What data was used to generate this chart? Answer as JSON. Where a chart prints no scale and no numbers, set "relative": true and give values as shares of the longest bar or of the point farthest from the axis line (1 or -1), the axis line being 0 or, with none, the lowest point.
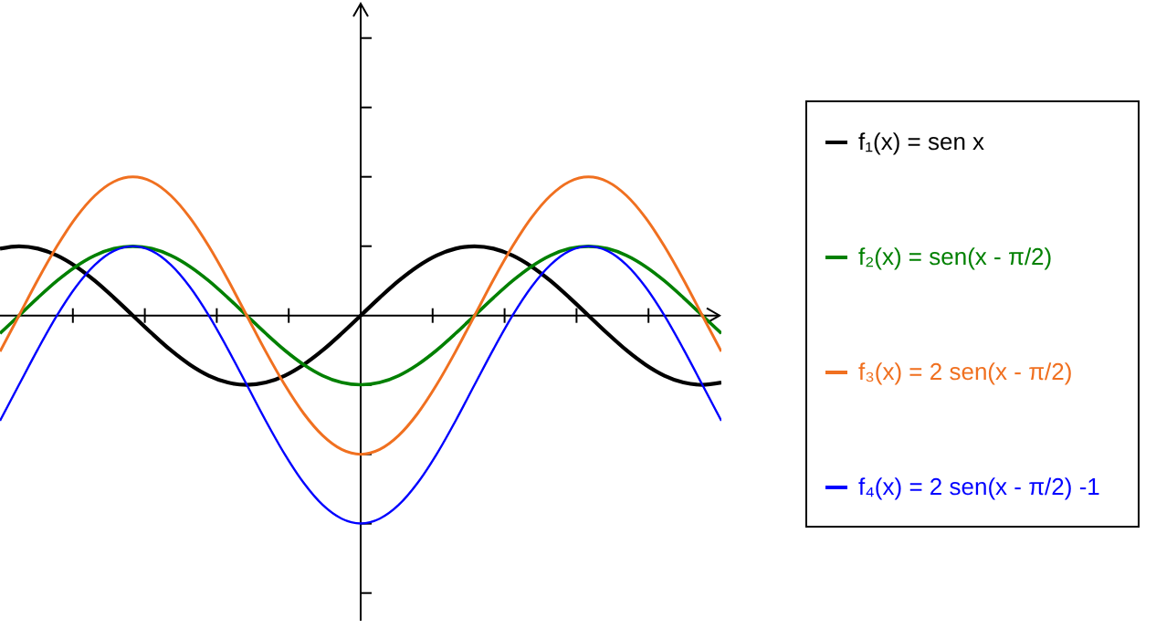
{
  "chart_data": {
    "type": "line",
    "relative": true,
    "legend": "right",
    "marker": "none",
    "line_style": "solid",
    "categories": [
      null,
      null,
      null,
      null,
      null,
      null,
      null,
      null,
      null,
      null,
      null,
      null,
      null,
      null,
      null,
      null,
      null,
      null,
      null,
      null,
      null,
      null,
      null,
      null,
      null,
      null,
      null,
      null,
      null,
      null,
      null,
      null,
      null,
      null,
      null,
      null,
      null,
      null,
      null
    ],
    "series": [
      {
        "name": "f₁(x) = sen x",
        "color": "#000000",
        "values": [
          0.322,
          0.333,
          0.322,
          0.289,
          0.236,
          0.167,
          0.086,
          0,
          -0.086,
          -0.167,
          -0.236,
          -0.289,
          -0.322,
          -0.333,
          -0.322,
          -0.289,
          -0.236,
          -0.167,
          -0.086,
          0,
          0.086,
          0.167,
          0.236,
          0.289,
          0.322,
          0.333,
          0.322,
          0.289,
          0.236,
          0.167,
          0.086,
          0,
          -0.086,
          -0.167,
          -0.236,
          -0.289,
          -0.322,
          -0.333,
          -0.322
        ]
      },
      {
        "name": "f₂(x) = sen(x - π/2)",
        "color": "#008000",
        "values": [
          -0.086,
          0,
          0.086,
          0.167,
          0.236,
          0.289,
          0.322,
          0.333,
          0.322,
          0.289,
          0.236,
          0.167,
          0.086,
          0,
          -0.086,
          -0.167,
          -0.236,
          -0.289,
          -0.322,
          -0.333,
          -0.322,
          -0.289,
          -0.236,
          -0.167,
          -0.086,
          0,
          0.086,
          0.167,
          0.236,
          0.289,
          0.322,
          0.333,
          0.322,
          0.289,
          0.236,
          0.167,
          0.086,
          0,
          -0.086
        ]
      },
      {
        "name": "f₃(x) = 2 sen(x - π/2)",
        "color": "#f07020",
        "values": [
          -0.173,
          0,
          0.173,
          0.333,
          0.471,
          0.577,
          0.644,
          0.667,
          0.644,
          0.577,
          0.471,
          0.333,
          0.173,
          0,
          -0.173,
          -0.333,
          -0.471,
          -0.577,
          -0.644,
          -0.667,
          -0.644,
          -0.577,
          -0.471,
          -0.333,
          -0.173,
          0,
          0.173,
          0.333,
          0.471,
          0.577,
          0.644,
          0.667,
          0.644,
          0.577,
          0.471,
          0.333,
          0.173,
          0,
          -0.173
        ]
      },
      {
        "name": "f₄(x) = 2 sen(x - π/2) -1",
        "color": "#0000ff",
        "values": [
          -0.506,
          -0.333,
          -0.161,
          0,
          0.138,
          0.244,
          0.311,
          0.333,
          0.311,
          0.244,
          0.138,
          0,
          -0.161,
          -0.333,
          -0.506,
          -0.667,
          -0.805,
          -0.911,
          -0.977,
          -1,
          -0.977,
          -0.911,
          -0.805,
          -0.667,
          -0.506,
          -0.333,
          -0.161,
          0,
          0.138,
          0.244,
          0.311,
          0.333,
          0.311,
          0.244,
          0.138,
          0,
          -0.161,
          -0.333,
          -0.506
        ]
      }
    ]
  }
}
